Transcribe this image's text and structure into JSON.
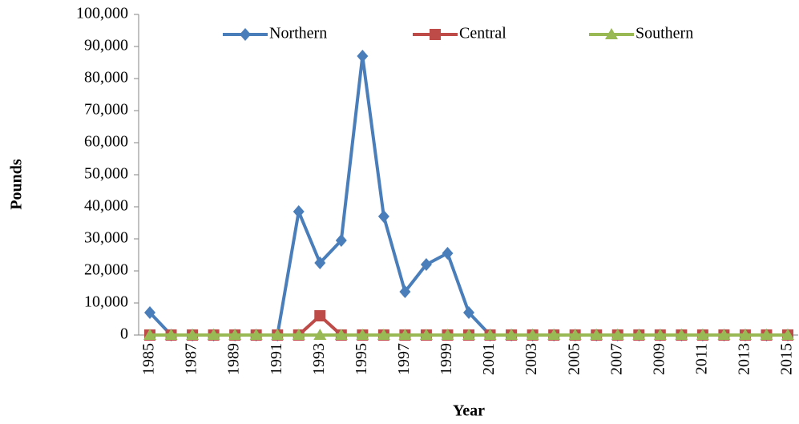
{
  "chart_data": {
    "type": "line",
    "x_label": "Year",
    "y_label": "Pounds",
    "x": [
      1985,
      1986,
      1987,
      1988,
      1989,
      1990,
      1991,
      1992,
      1993,
      1994,
      1995,
      1996,
      1997,
      1998,
      1999,
      2000,
      2001,
      2002,
      2003,
      2004,
      2005,
      2006,
      2007,
      2008,
      2009,
      2010,
      2011,
      2012,
      2013,
      2014,
      2015
    ],
    "series": [
      {
        "name": "Northern",
        "color": "#4a7ebb",
        "marker": "diamond",
        "values": [
          7000,
          0,
          0,
          0,
          0,
          0,
          0,
          38500,
          22500,
          29500,
          87000,
          37000,
          13500,
          22000,
          25500,
          7000,
          0,
          0,
          0,
          0,
          0,
          0,
          0,
          0,
          0,
          0,
          0,
          0,
          0,
          0,
          0
        ]
      },
      {
        "name": "Central",
        "color": "#be4b48",
        "marker": "square",
        "values": [
          0,
          0,
          0,
          0,
          0,
          0,
          0,
          0,
          6000,
          0,
          0,
          0,
          0,
          0,
          0,
          0,
          0,
          0,
          0,
          0,
          0,
          0,
          0,
          0,
          0,
          0,
          0,
          0,
          0,
          0,
          0
        ]
      },
      {
        "name": "Southern",
        "color": "#98b954",
        "marker": "triangle",
        "values": [
          0,
          0,
          0,
          0,
          0,
          0,
          0,
          0,
          0,
          0,
          0,
          0,
          0,
          0,
          0,
          0,
          0,
          0,
          0,
          0,
          0,
          0,
          0,
          0,
          0,
          0,
          0,
          0,
          0,
          0,
          0
        ]
      }
    ],
    "xlim": [
      1985,
      2015
    ],
    "xticks": [
      1985,
      1987,
      1989,
      1991,
      1993,
      1995,
      1997,
      1999,
      2001,
      2003,
      2005,
      2007,
      2009,
      2011,
      2013,
      2015
    ],
    "ylim": [
      0,
      100000
    ],
    "yticks": [
      0,
      {
        "value": 10000,
        "label": "10,000"
      },
      {
        "value": 20000,
        "label": "20,000"
      },
      {
        "value": 30000,
        "label": "30,000"
      },
      {
        "value": 40000,
        "label": "40,000"
      },
      {
        "value": 50000,
        "label": "50,000"
      },
      {
        "value": 60000,
        "label": "60,000"
      },
      {
        "value": 70000,
        "label": "70,000"
      },
      {
        "value": 80000,
        "label": "80,000"
      },
      {
        "value": 90000,
        "label": "90,000"
      },
      {
        "value": 100000,
        "label": "100,000"
      }
    ],
    "grid": false,
    "legend": "top"
  }
}
